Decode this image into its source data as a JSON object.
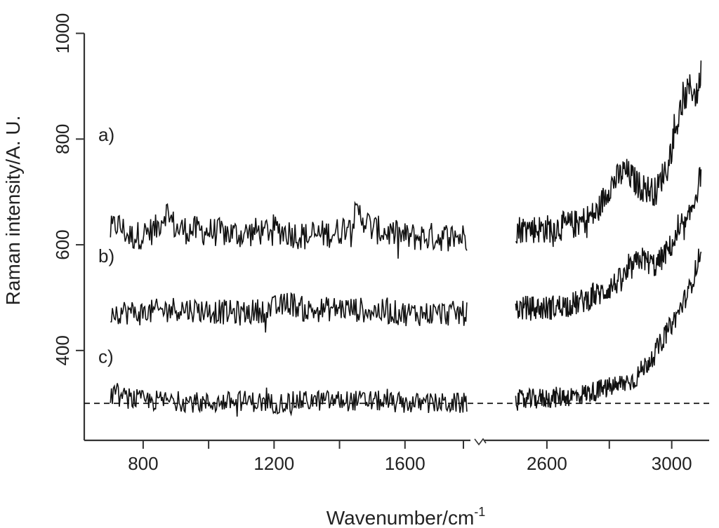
{
  "chart_data": {
    "type": "line",
    "title": "",
    "xlabel": "Wavenumber/cm",
    "xlabel_sup": "-1",
    "ylabel": "Raman intensity/A. U.",
    "axis_break": {
      "from": 1800,
      "to": 2500
    },
    "segments": [
      {
        "xlim": [
          620,
          1800
        ]
      },
      {
        "xlim": [
          2400,
          3120
        ]
      }
    ],
    "ylim": [
      230,
      1010
    ],
    "x_ticks": [
      800,
      1200,
      1600,
      2600,
      3000
    ],
    "x_tick_labels": [
      "800",
      "1200",
      "1600",
      "2600",
      "3000"
    ],
    "x_minor_ticks": [
      1000,
      1400,
      2800
    ],
    "y_ticks": [
      400,
      600,
      800,
      1000
    ],
    "y_tick_labels": [
      "400",
      "600",
      "800",
      "1000"
    ],
    "grid": false,
    "baseline": {
      "y": 300,
      "style": "dashed"
    },
    "series": [
      {
        "label": "a)",
        "label_y": 810,
        "noise": 28,
        "points": [
          [
            700,
            625
          ],
          [
            720,
            640
          ],
          [
            760,
            615
          ],
          [
            800,
            620
          ],
          [
            840,
            630
          ],
          [
            870,
            665
          ],
          [
            900,
            630
          ],
          [
            1000,
            625
          ],
          [
            1100,
            620
          ],
          [
            1200,
            630
          ],
          [
            1300,
            615
          ],
          [
            1400,
            625
          ],
          [
            1460,
            660
          ],
          [
            1500,
            630
          ],
          [
            1600,
            615
          ],
          [
            1700,
            615
          ],
          [
            1790,
            615
          ],
          [
            2500,
            630
          ],
          [
            2600,
            630
          ],
          [
            2700,
            640
          ],
          [
            2760,
            660
          ],
          [
            2800,
            710
          ],
          [
            2850,
            740
          ],
          [
            2900,
            710
          ],
          [
            2950,
            700
          ],
          [
            2990,
            760
          ],
          [
            3030,
            860
          ],
          [
            3060,
            900
          ],
          [
            3080,
            880
          ],
          [
            3095,
            930
          ]
        ]
      },
      {
        "label": "b)",
        "label_y": 580,
        "noise": 24,
        "points": [
          [
            700,
            475
          ],
          [
            800,
            470
          ],
          [
            900,
            480
          ],
          [
            1000,
            475
          ],
          [
            1100,
            470
          ],
          [
            1200,
            480
          ],
          [
            1250,
            490
          ],
          [
            1300,
            475
          ],
          [
            1400,
            480
          ],
          [
            1500,
            475
          ],
          [
            1600,
            470
          ],
          [
            1700,
            470
          ],
          [
            1790,
            470
          ],
          [
            2500,
            480
          ],
          [
            2600,
            480
          ],
          [
            2700,
            490
          ],
          [
            2780,
            510
          ],
          [
            2850,
            540
          ],
          [
            2900,
            575
          ],
          [
            2950,
            560
          ],
          [
            3000,
            600
          ],
          [
            3050,
            640
          ],
          [
            3080,
            700
          ],
          [
            3095,
            740
          ]
        ]
      },
      {
        "label": "c)",
        "label_y": 390,
        "noise": 20,
        "points": [
          [
            700,
            315
          ],
          [
            800,
            305
          ],
          [
            900,
            305
          ],
          [
            1000,
            300
          ],
          [
            1100,
            305
          ],
          [
            1200,
            300
          ],
          [
            1300,
            305
          ],
          [
            1400,
            305
          ],
          [
            1500,
            305
          ],
          [
            1600,
            300
          ],
          [
            1700,
            300
          ],
          [
            1790,
            300
          ],
          [
            2500,
            305
          ],
          [
            2600,
            310
          ],
          [
            2700,
            315
          ],
          [
            2800,
            330
          ],
          [
            2880,
            345
          ],
          [
            2940,
            390
          ],
          [
            2980,
            430
          ],
          [
            3020,
            470
          ],
          [
            3060,
            520
          ],
          [
            3095,
            590
          ]
        ]
      }
    ]
  }
}
